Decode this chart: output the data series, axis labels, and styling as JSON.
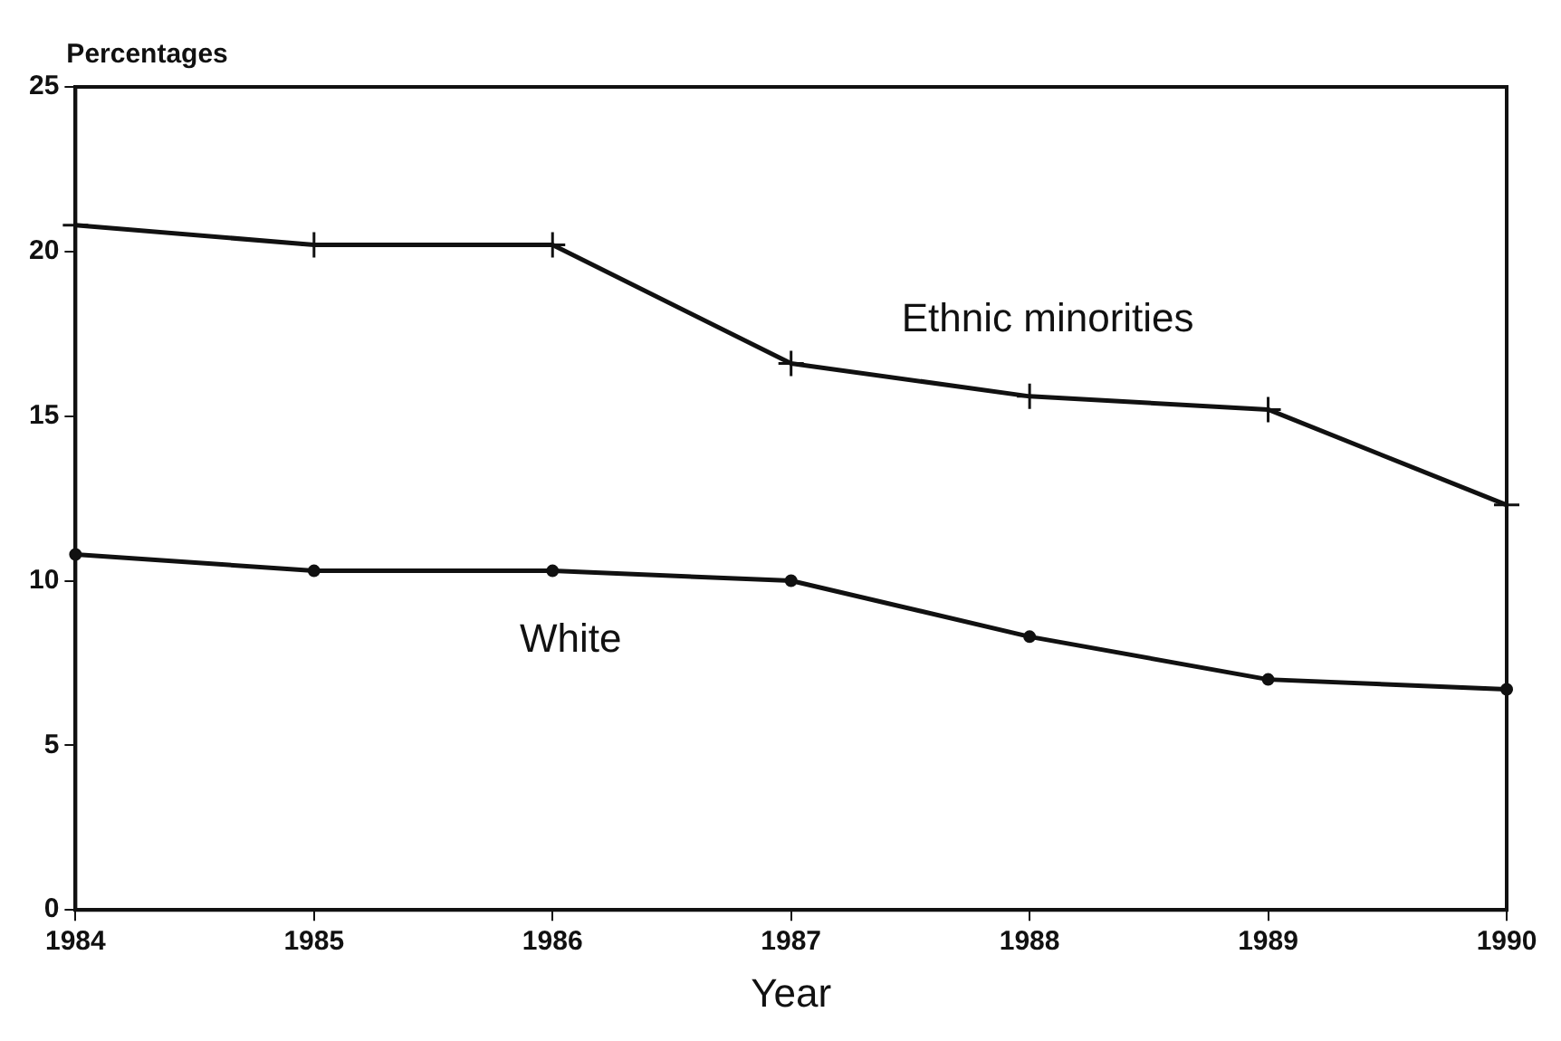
{
  "chart_data": {
    "type": "line",
    "xlabel": "Year",
    "ylabel": "Percentages",
    "x": [
      1984,
      1985,
      1986,
      1987,
      1988,
      1989,
      1990
    ],
    "series": [
      {
        "name": "Ethnic minorities",
        "color": "#111111",
        "marker": "cross",
        "values": [
          20.8,
          20.2,
          20.2,
          16.6,
          15.6,
          15.2,
          12.3
        ]
      },
      {
        "name": "White",
        "color": "#111111",
        "marker": "circle",
        "values": [
          10.8,
          10.3,
          10.3,
          10.0,
          8.3,
          7.0,
          6.7
        ]
      }
    ],
    "xlim": [
      1984,
      1990
    ],
    "xticks": [
      1984,
      1985,
      1986,
      1987,
      1988,
      1989,
      1990
    ],
    "ylim": [
      0,
      25
    ],
    "yticks": [
      0,
      5,
      10,
      15,
      20,
      25
    ],
    "grid": false,
    "legend": false,
    "line_style": "solid"
  }
}
